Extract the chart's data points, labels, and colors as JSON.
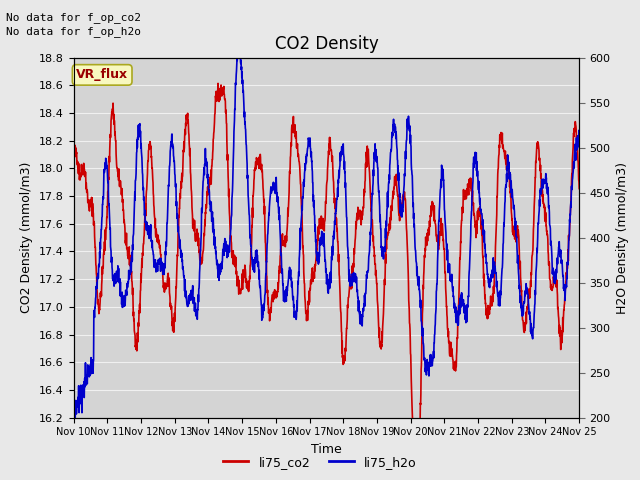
{
  "title": "CO2 Density",
  "xlabel": "Time",
  "ylabel_left": "CO2 Density (mmol/m3)",
  "ylabel_right": "H2O Density (mmol/m3)",
  "no_data_line1": "No data for f_op_co2",
  "no_data_line2": "No data for f_op_h2o",
  "vr_flux_label": "VR_flux",
  "legend_entries": [
    "li75_co2",
    "li75_h2o"
  ],
  "co2_color": "#cc0000",
  "h2o_color": "#0000cc",
  "ylim_left": [
    16.2,
    18.8
  ],
  "ylim_right": [
    200,
    600
  ],
  "yticks_left": [
    16.2,
    16.4,
    16.6,
    16.8,
    17.0,
    17.2,
    17.4,
    17.6,
    17.8,
    18.0,
    18.2,
    18.4,
    18.6,
    18.8
  ],
  "yticks_right": [
    200,
    250,
    300,
    350,
    400,
    450,
    500,
    550,
    600
  ],
  "xtick_labels": [
    "Nov 10",
    "Nov 11",
    "Nov 12",
    "Nov 13",
    "Nov 14",
    "Nov 15",
    "Nov 16",
    "Nov 17",
    "Nov 18",
    "Nov 19",
    "Nov 20",
    "Nov 21",
    "Nov 22",
    "Nov 23",
    "Nov 24",
    "Nov 25"
  ],
  "fig_bg_color": "#e8e8e8",
  "plot_bg_color": "#d4d4d4",
  "grid_color": "#f0f0f0",
  "linewidth": 1.2,
  "num_points": 2000
}
